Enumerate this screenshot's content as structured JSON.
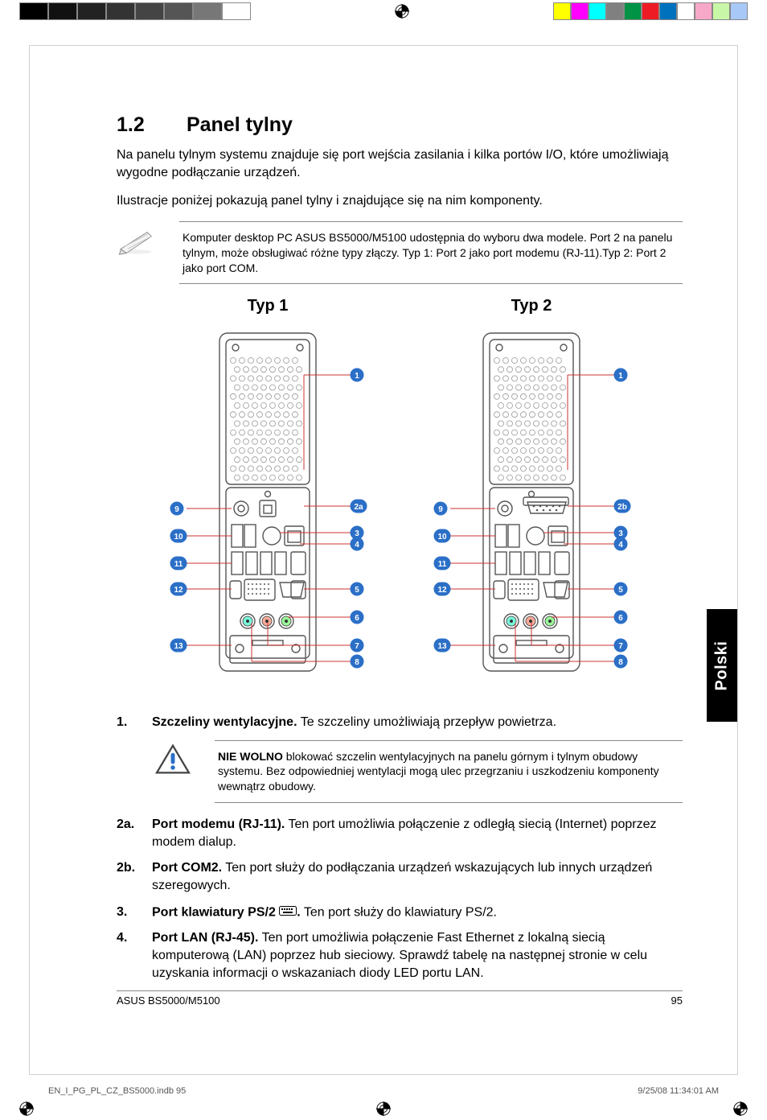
{
  "section": {
    "number": "1.2",
    "title": "Panel tylny"
  },
  "intro1": "Na panelu tylnym systemu znajduje się port wejścia zasilania i kilka portów I/O, które umożliwiają wygodne podłączanie urządzeń.",
  "intro2": "Ilustracje poniżej pokazują panel tylny i znajdujące się na nim komponenty.",
  "note": "Komputer desktop PC ASUS BS5000/M5100 udostępnia do wyboru dwa modele. Port 2 na panelu tylnym, może obsługiwać różne typy złączy. Typ 1: Port 2 jako port modemu (RJ-11).Typ 2: Port 2 jako port COM.",
  "typ1_label": "Typ 1",
  "typ2_label": "Typ 2",
  "callouts_left": [
    "9",
    "10",
    "11",
    "12",
    "13"
  ],
  "callouts_right_t1": [
    "1",
    "2a",
    "3",
    "4",
    "5",
    "6",
    "7",
    "8"
  ],
  "callouts_right_t2": [
    "1",
    "2b",
    "3",
    "4",
    "5",
    "6",
    "7",
    "8"
  ],
  "callout_color": "#2b6fc7",
  "leader_color": "#c33",
  "item1": {
    "n": "1.",
    "b": "Szczeliny wentylacyjne.",
    "t": " Te szczeliny umożliwiają przepływ powietrza."
  },
  "warn_b": "NIE WOLNO",
  "warn_t": " blokować szczelin wentylacyjnych na panelu górnym i tylnym obudowy systemu. Bez odpowiedniej wentylacji mogą ulec przegrzaniu i uszkodzeniu komponenty wewnątrz obudowy.",
  "item2a": {
    "n": "2a.",
    "b": "Port modemu (RJ-11).",
    "t": " Ten port umożliwia połączenie z odległą siecią (Internet) poprzez modem dialup."
  },
  "item2b": {
    "n": "2b.",
    "b": "Port COM2.",
    "t": " Ten port służy do podłączania urządzeń wskazujących lub innych urządzeń szeregowych."
  },
  "item3": {
    "n": "3.",
    "b": "Port klawiatury PS/2 ",
    "t": " Ten port służy do klawiatury PS/2."
  },
  "item4": {
    "n": "4.",
    "b": "Port LAN (RJ-45).",
    "t": " Ten port umożliwia połączenie Fast Ethernet z lokalną siecią komputerową (LAN) poprzez hub sieciowy. Sprawdź tabelę na następnej stronie w celu uzyskania informacji o wskazaniach diody LED portu LAN."
  },
  "footer_model": "ASUS BS5000/M5100",
  "footer_page": "95",
  "outer_file": "EN_I_PG_PL_CZ_BS5000.indb   95",
  "outer_ts": "9/25/08   11:34:01 AM",
  "side_tab": "Polski",
  "print_colors": [
    "#ffff00",
    "#ff00ff",
    "#00ffff",
    "#808080",
    "#009245",
    "#ed1c24",
    "#0071bc",
    "#ffffff",
    "#f7a8c9",
    "#c9f7a8",
    "#a8c9f7"
  ],
  "bw_blocks": [
    "#000",
    "#111",
    "#222",
    "#333",
    "#444",
    "#555",
    "#777",
    "#fff"
  ]
}
